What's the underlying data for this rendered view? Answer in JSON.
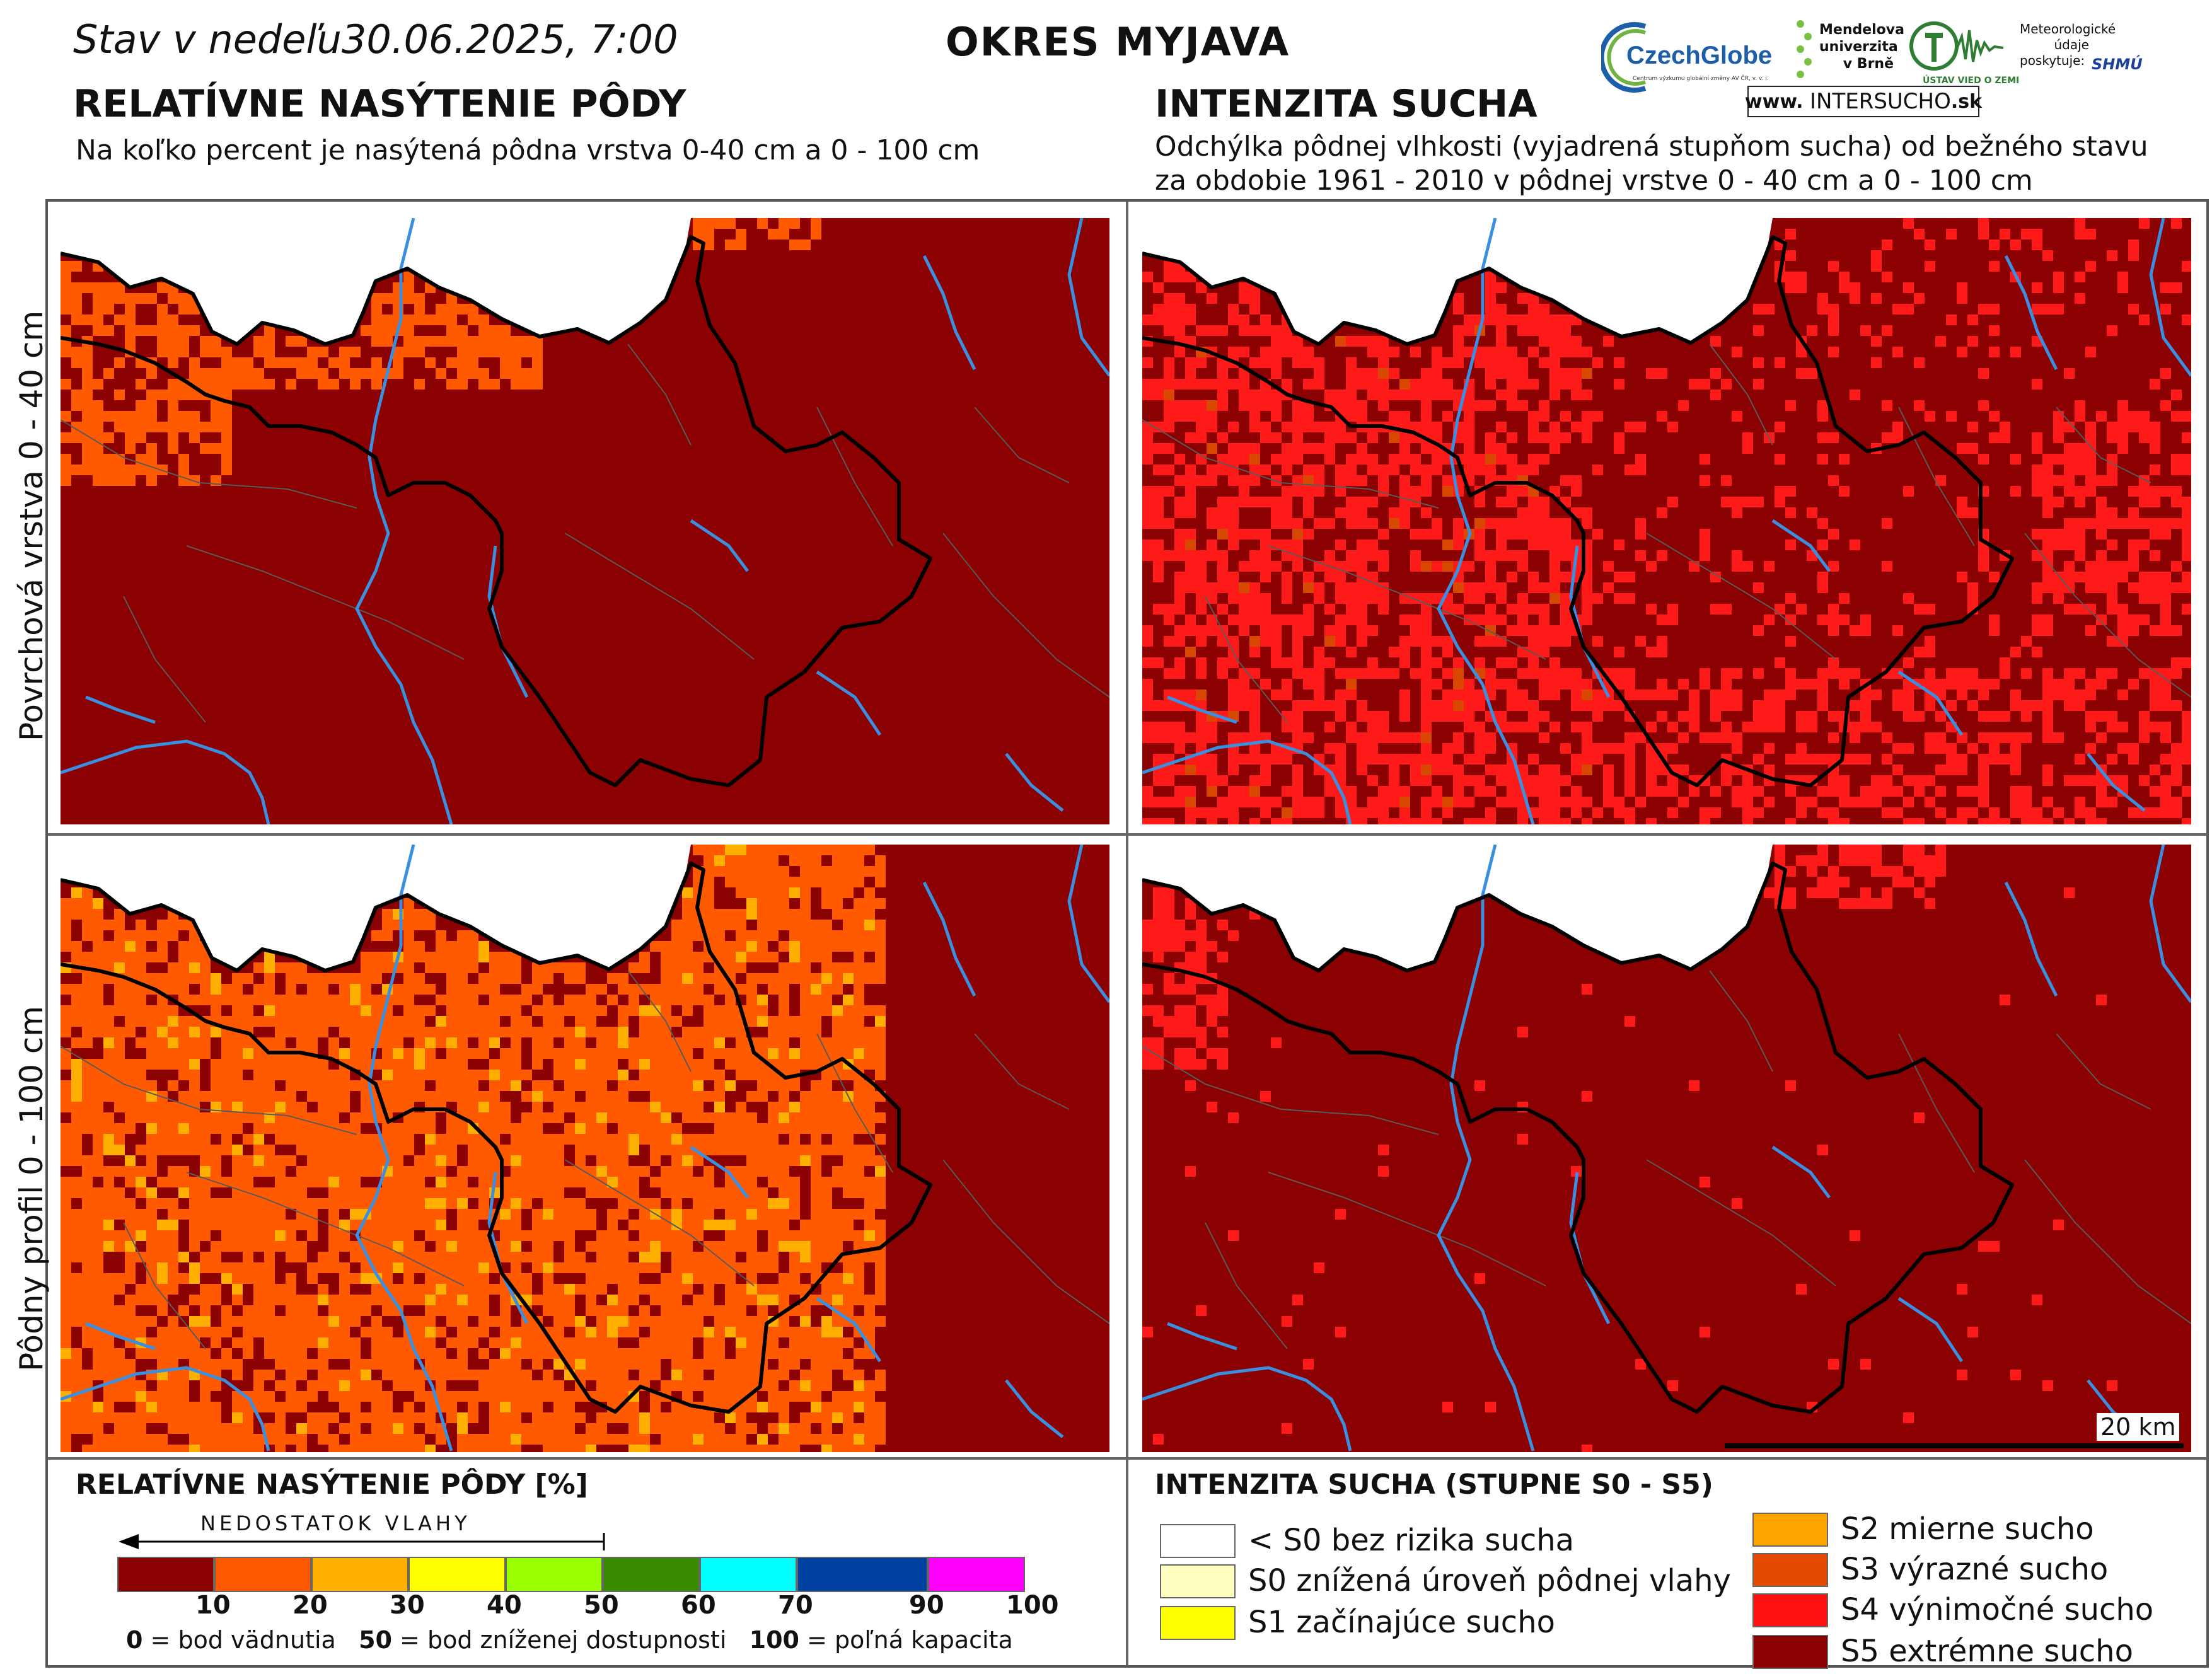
{
  "header": {
    "date_line": "Stav v nedeľu30.06.2025, 7:00",
    "district": "OKRES  MYJAVA"
  },
  "left_section": {
    "title": "RELATÍVNE NASÝTENIE PÔDY",
    "subtitle": "Na koľko percent je nasýtená pôdna vrstva 0-40 cm a 0 - 100 cm"
  },
  "right_section": {
    "title": "INTENZITA SUCHA",
    "subtitle_line1": "Odchýlka pôdnej vlhkosti (vyjadrená stupňom sucha) od bežného stavu",
    "subtitle_line2": "za obdobie 1961 - 2010 v pôdnej vrstve 0 - 40 cm a 0 - 100 cm"
  },
  "logos": {
    "czechglobe": "CzechGlobe",
    "czechglobe_sub": "Centrum výzkumu globální změny AV ČR, v. v. i.",
    "mendel": [
      "Mendelova",
      "univerzita",
      "v Brně"
    ],
    "tvz": "ÚSTAV VIED O ZEMI",
    "meteo": [
      "Meteorologické",
      "údaje",
      "poskytuje:"
    ],
    "shmu": "SHMÚ",
    "intersucho_pre": "www.",
    "intersucho_main": "INTERSUCHO",
    "intersucho_post": ".sk"
  },
  "rows": {
    "top_label": "Povrchová vrstva 0 - 40 cm",
    "bottom_label": "Pôdny profil 0 - 100 cm"
  },
  "scale_bar": "20 km",
  "legend_saturation": {
    "title": "RELATÍVNE NASÝTENIE PÔDY [%]",
    "arrow_label": "NEDOSTATOK VLAHY",
    "classes": [
      {
        "color": "#8b0000"
      },
      {
        "color": "#ff5a00"
      },
      {
        "color": "#ffb000"
      },
      {
        "color": "#ffff00"
      },
      {
        "color": "#99ff00"
      },
      {
        "color": "#3a8a00"
      },
      {
        "color": "#00ffff"
      },
      {
        "color": "#0040a0"
      },
      {
        "color": "#ff00ff"
      }
    ],
    "ticks": [
      "10",
      "20",
      "30",
      "40",
      "50",
      "60",
      "70",
      "90",
      "100"
    ],
    "note_0_num": "0",
    "note_0_text": " = bod vädnutia",
    "note_50_num": "50",
    "note_50_text": " = bod zníženej dostupnosti",
    "note_100_num": "100",
    "note_100_text": " = poľná kapacita"
  },
  "legend_drought": {
    "title": "INTENZITA SUCHA (STUPNE S0 - S5)",
    "items": [
      {
        "label": "< S0 bez rizika sucha",
        "color": "#ffffff"
      },
      {
        "label": "S0 znížená úroveň pôdnej vlahy",
        "color": "#ffffc0"
      },
      {
        "label": "S1 začínajúce sucho",
        "color": "#ffff00"
      },
      {
        "label": "S2 mierne sucho",
        "color": "#ffa500"
      },
      {
        "label": "S3 výrazné sucho",
        "color": "#e64a00"
      },
      {
        "label": "S4 výnimočné sucho",
        "color": "#ff1010"
      },
      {
        "label": "S5 extrémne sucho",
        "color": "#8b0000"
      }
    ]
  },
  "colors": {
    "dark_red": "#8b0000",
    "orange": "#ff5a00",
    "light_orange": "#ffb000",
    "red": "#ff1a1a",
    "s3": "#d94800",
    "river": "#3a8fe0",
    "border": "#000000"
  }
}
